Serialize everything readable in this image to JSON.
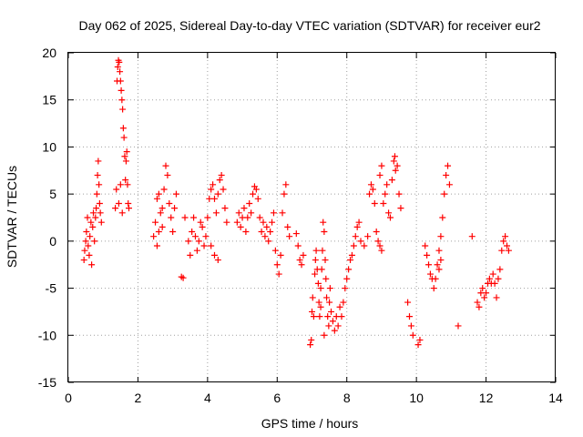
{
  "chart_data": {
    "type": "scatter",
    "title": "Day 062 of 2025, Sidereal Day-to-day VTEC variation (SDTVAR) for receiver eur2",
    "xlabel": "GPS time / hours",
    "ylabel": "SDTVAR / TECUs",
    "xlim": [
      0,
      14
    ],
    "ylim": [
      -15,
      20
    ],
    "xticks": [
      0,
      2,
      4,
      6,
      8,
      10,
      12,
      14
    ],
    "yticks": [
      -15,
      -10,
      -5,
      0,
      5,
      10,
      15,
      20
    ],
    "xtick_labels": [
      "0",
      "2",
      "4",
      "6",
      "8",
      "10",
      "12",
      "14"
    ],
    "ytick_labels": [
      "-15",
      "-10",
      "-5",
      "0",
      "5",
      "10",
      "15",
      "20"
    ],
    "grid": true,
    "marker": "+",
    "color": "#ff0000",
    "series": [
      {
        "name": "eur2",
        "points": [
          [
            0.45,
            -2.0
          ],
          [
            0.47,
            -1.0
          ],
          [
            0.5,
            0.0
          ],
          [
            0.52,
            1.0
          ],
          [
            0.55,
            2.5
          ],
          [
            0.57,
            -0.5
          ],
          [
            0.6,
            -1.5
          ],
          [
            0.62,
            0.5
          ],
          [
            0.65,
            2.0
          ],
          [
            0.67,
            -2.5
          ],
          [
            0.7,
            1.5
          ],
          [
            0.72,
            3.0
          ],
          [
            0.75,
            0.0
          ],
          [
            0.78,
            2.5
          ],
          [
            0.8,
            3.5
          ],
          [
            0.82,
            5.0
          ],
          [
            0.84,
            7.0
          ],
          [
            0.86,
            8.5
          ],
          [
            0.88,
            6.0
          ],
          [
            0.9,
            4.0
          ],
          [
            0.92,
            3.0
          ],
          [
            0.95,
            2.0
          ],
          [
            1.35,
            3.5
          ],
          [
            1.38,
            5.5
          ],
          [
            1.4,
            17.0
          ],
          [
            1.42,
            18.5
          ],
          [
            1.44,
            19.2
          ],
          [
            1.46,
            19.0
          ],
          [
            1.48,
            18.0
          ],
          [
            1.5,
            17.0
          ],
          [
            1.52,
            16.0
          ],
          [
            1.54,
            15.0
          ],
          [
            1.56,
            14.0
          ],
          [
            1.58,
            12.0
          ],
          [
            1.6,
            11.0
          ],
          [
            1.62,
            9.0
          ],
          [
            1.64,
            6.5
          ],
          [
            1.66,
            8.5
          ],
          [
            1.68,
            9.5
          ],
          [
            1.7,
            6.0
          ],
          [
            1.72,
            4.0
          ],
          [
            1.74,
            3.5
          ],
          [
            1.45,
            4.0
          ],
          [
            1.5,
            6.0
          ],
          [
            1.55,
            3.0
          ],
          [
            2.45,
            0.5
          ],
          [
            2.5,
            2.0
          ],
          [
            2.55,
            4.5
          ],
          [
            2.6,
            5.0
          ],
          [
            2.65,
            3.0
          ],
          [
            2.7,
            1.5
          ],
          [
            2.75,
            5.5
          ],
          [
            2.8,
            8.0
          ],
          [
            2.85,
            7.0
          ],
          [
            2.9,
            4.0
          ],
          [
            2.95,
            2.5
          ],
          [
            3.0,
            1.0
          ],
          [
            3.05,
            3.5
          ],
          [
            3.1,
            5.0
          ],
          [
            2.55,
            -0.5
          ],
          [
            2.6,
            1.0
          ],
          [
            2.7,
            3.5
          ],
          [
            3.25,
            -3.8
          ],
          [
            3.3,
            -3.9
          ],
          [
            3.35,
            2.5
          ],
          [
            3.45,
            0.0
          ],
          [
            3.5,
            -1.5
          ],
          [
            3.55,
            1.0
          ],
          [
            3.6,
            2.5
          ],
          [
            3.65,
            0.5
          ],
          [
            3.7,
            -1.0
          ],
          [
            3.75,
            0.0
          ],
          [
            3.8,
            2.0
          ],
          [
            3.85,
            1.5
          ],
          [
            3.9,
            -0.5
          ],
          [
            3.95,
            0.5
          ],
          [
            4.0,
            2.5
          ],
          [
            4.05,
            4.5
          ],
          [
            4.1,
            5.5
          ],
          [
            4.15,
            6.0
          ],
          [
            4.2,
            4.5
          ],
          [
            4.25,
            3.0
          ],
          [
            4.3,
            5.0
          ],
          [
            4.35,
            6.5
          ],
          [
            4.4,
            7.0
          ],
          [
            4.45,
            5.5
          ],
          [
            4.5,
            3.5
          ],
          [
            4.55,
            2.0
          ],
          [
            4.1,
            -0.5
          ],
          [
            4.2,
            -1.5
          ],
          [
            4.3,
            -2.0
          ],
          [
            4.85,
            2.0
          ],
          [
            4.9,
            3.0
          ],
          [
            4.95,
            1.5
          ],
          [
            5.0,
            2.5
          ],
          [
            5.05,
            3.5
          ],
          [
            5.1,
            1.0
          ],
          [
            5.15,
            2.5
          ],
          [
            5.2,
            4.0
          ],
          [
            5.25,
            3.0
          ],
          [
            5.3,
            5.0
          ],
          [
            5.35,
            5.8
          ],
          [
            5.4,
            5.5
          ],
          [
            5.45,
            4.5
          ],
          [
            5.5,
            2.5
          ],
          [
            5.55,
            1.0
          ],
          [
            5.6,
            2.0
          ],
          [
            5.65,
            0.5
          ],
          [
            5.7,
            1.5
          ],
          [
            5.75,
            0.0
          ],
          [
            5.8,
            1.0
          ],
          [
            5.85,
            2.0
          ],
          [
            5.9,
            3.0
          ],
          [
            5.95,
            -1.0
          ],
          [
            6.0,
            -2.5
          ],
          [
            6.05,
            -3.5
          ],
          [
            6.1,
            -1.5
          ],
          [
            6.15,
            3.0
          ],
          [
            6.2,
            5.0
          ],
          [
            6.25,
            6.0
          ],
          [
            6.3,
            1.5
          ],
          [
            6.35,
            0.5
          ],
          [
            6.55,
            0.8
          ],
          [
            6.6,
            -0.5
          ],
          [
            6.65,
            -2.0
          ],
          [
            6.7,
            -2.5
          ],
          [
            6.75,
            -1.5
          ],
          [
            6.95,
            -11.0
          ],
          [
            6.98,
            -10.5
          ],
          [
            7.0,
            -7.5
          ],
          [
            7.02,
            -6.0
          ],
          [
            7.05,
            -8.0
          ],
          [
            7.08,
            -3.5
          ],
          [
            7.1,
            -2.0
          ],
          [
            7.12,
            -1.0
          ],
          [
            7.15,
            -3.0
          ],
          [
            7.18,
            -4.5
          ],
          [
            7.2,
            -6.5
          ],
          [
            7.22,
            -8.0
          ],
          [
            7.25,
            -5.0
          ],
          [
            7.28,
            -3.0
          ],
          [
            7.3,
            -1.0
          ],
          [
            7.32,
            2.0
          ],
          [
            7.35,
            1.0
          ],
          [
            7.38,
            -2.0
          ],
          [
            7.4,
            -4.0
          ],
          [
            7.42,
            -6.0
          ],
          [
            7.45,
            -8.0
          ],
          [
            7.48,
            -9.0
          ],
          [
            7.5,
            -6.5
          ],
          [
            7.52,
            -5.0
          ],
          [
            7.55,
            -7.5
          ],
          [
            7.6,
            -8.5
          ],
          [
            7.65,
            -9.5
          ],
          [
            7.7,
            -8.0
          ],
          [
            7.75,
            -9.0
          ],
          [
            7.8,
            -7.0
          ],
          [
            7.85,
            -8.0
          ],
          [
            7.9,
            -6.5
          ],
          [
            7.95,
            -5.0
          ],
          [
            8.0,
            -4.0
          ],
          [
            8.05,
            -3.0
          ],
          [
            8.1,
            -2.0
          ],
          [
            8.15,
            -1.5
          ],
          [
            8.2,
            -0.5
          ],
          [
            8.25,
            0.5
          ],
          [
            8.3,
            1.5
          ],
          [
            8.35,
            2.0
          ],
          [
            7.25,
            -7.0
          ],
          [
            7.35,
            -10.0
          ],
          [
            8.4,
            0.0
          ],
          [
            8.5,
            -0.5
          ],
          [
            8.6,
            0.5
          ],
          [
            8.65,
            5.0
          ],
          [
            8.7,
            6.0
          ],
          [
            8.75,
            5.5
          ],
          [
            8.8,
            4.0
          ],
          [
            8.85,
            1.0
          ],
          [
            8.9,
            0.0
          ],
          [
            8.95,
            7.0
          ],
          [
            9.0,
            8.0
          ],
          [
            9.05,
            4.0
          ],
          [
            9.1,
            5.0
          ],
          [
            9.15,
            6.0
          ],
          [
            9.2,
            3.0
          ],
          [
            9.25,
            2.5
          ],
          [
            9.3,
            6.5
          ],
          [
            9.35,
            8.5
          ],
          [
            9.38,
            9.0
          ],
          [
            9.4,
            7.5
          ],
          [
            9.45,
            8.0
          ],
          [
            9.5,
            5.0
          ],
          [
            9.55,
            3.5
          ],
          [
            8.95,
            -0.5
          ],
          [
            9.0,
            -1.0
          ],
          [
            9.75,
            -6.5
          ],
          [
            9.8,
            -8.0
          ],
          [
            9.85,
            -9.0
          ],
          [
            9.9,
            -10.0
          ],
          [
            10.05,
            -11.0
          ],
          [
            10.1,
            -10.5
          ],
          [
            10.25,
            -0.5
          ],
          [
            10.3,
            -1.5
          ],
          [
            10.35,
            -2.5
          ],
          [
            10.4,
            -3.5
          ],
          [
            10.45,
            -4.0
          ],
          [
            10.5,
            -5.0
          ],
          [
            10.55,
            -4.0
          ],
          [
            10.6,
            -2.5
          ],
          [
            10.65,
            -1.0
          ],
          [
            10.7,
            0.5
          ],
          [
            10.75,
            2.5
          ],
          [
            10.8,
            5.0
          ],
          [
            10.85,
            7.0
          ],
          [
            10.9,
            8.0
          ],
          [
            10.95,
            6.0
          ],
          [
            10.65,
            -3.0
          ],
          [
            10.7,
            -2.0
          ],
          [
            11.2,
            -9.0
          ],
          [
            11.6,
            0.5
          ],
          [
            11.75,
            -6.5
          ],
          [
            11.8,
            -7.0
          ],
          [
            11.85,
            -5.5
          ],
          [
            11.9,
            -5.0
          ],
          [
            11.95,
            -6.0
          ],
          [
            12.0,
            -5.5
          ],
          [
            12.05,
            -4.5
          ],
          [
            12.1,
            -4.0
          ],
          [
            12.15,
            -4.5
          ],
          [
            12.2,
            -3.5
          ],
          [
            12.25,
            -4.5
          ],
          [
            12.3,
            -6.0
          ],
          [
            12.35,
            -4.0
          ],
          [
            12.4,
            -3.0
          ],
          [
            12.45,
            -1.0
          ],
          [
            12.5,
            0.0
          ],
          [
            12.55,
            0.5
          ],
          [
            12.6,
            -0.5
          ],
          [
            12.65,
            -1.0
          ]
        ]
      }
    ]
  }
}
